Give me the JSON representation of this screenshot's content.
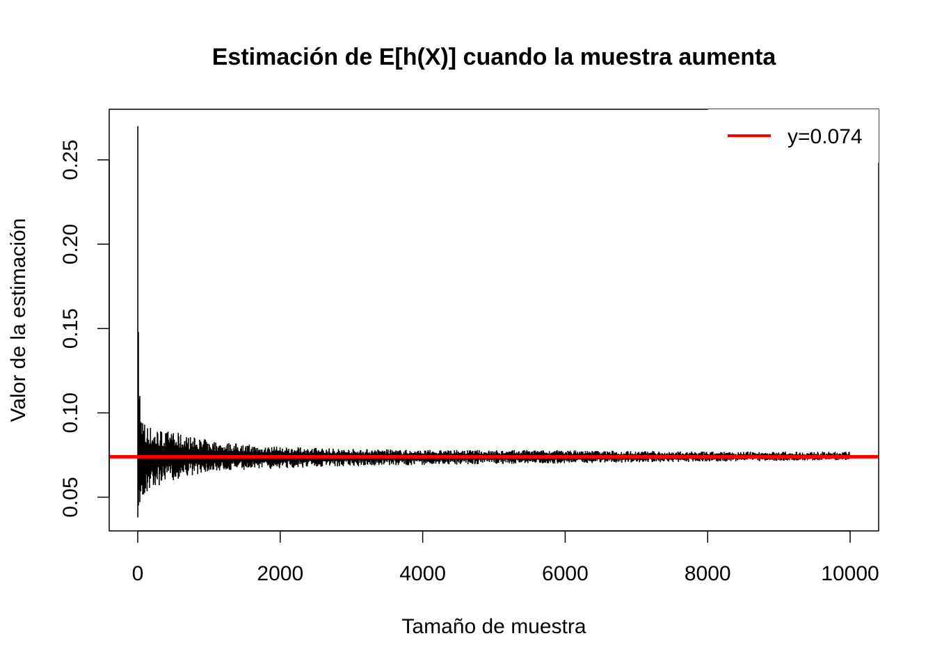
{
  "chart_data": {
    "type": "line",
    "title": "Estimación de E[h(X)] cuando la muestra aumenta",
    "xlabel": "Tamaño de muestra",
    "ylabel": "Valor de la estimación",
    "xlim": [
      -400,
      10400
    ],
    "ylim": [
      0.03,
      0.28
    ],
    "x_ticks": [
      0,
      2000,
      4000,
      6000,
      8000,
      10000
    ],
    "x_tick_labels": [
      "0",
      "2000",
      "4000",
      "6000",
      "8000",
      "10000"
    ],
    "y_ticks": [
      0.05,
      0.1,
      0.15,
      0.2,
      0.25
    ],
    "y_tick_labels": [
      "0.05",
      "0.10",
      "0.15",
      "0.20",
      "0.25"
    ],
    "grid": false,
    "series": [
      {
        "color": "#000000",
        "x_range": [
          1,
          10000
        ],
        "envelope": [
          {
            "x": 1,
            "y_min": 0.038,
            "y_max": 0.27
          },
          {
            "x": 10,
            "y_min": 0.045,
            "y_max": 0.148
          },
          {
            "x": 30,
            "y_min": 0.047,
            "y_max": 0.11
          },
          {
            "x": 100,
            "y_min": 0.05,
            "y_max": 0.095
          },
          {
            "x": 300,
            "y_min": 0.057,
            "y_max": 0.091
          },
          {
            "x": 600,
            "y_min": 0.061,
            "y_max": 0.088
          },
          {
            "x": 1000,
            "y_min": 0.065,
            "y_max": 0.084
          },
          {
            "x": 2000,
            "y_min": 0.067,
            "y_max": 0.08
          },
          {
            "x": 4000,
            "y_min": 0.069,
            "y_max": 0.078
          },
          {
            "x": 6000,
            "y_min": 0.07,
            "y_max": 0.078
          },
          {
            "x": 8000,
            "y_min": 0.071,
            "y_max": 0.077
          },
          {
            "x": 10000,
            "y_min": 0.072,
            "y_max": 0.077
          }
        ],
        "converges_to": 0.074
      },
      {
        "name": "y=0.074",
        "type": "hline",
        "y": 0.074,
        "color": "#ff0000"
      }
    ],
    "legend": {
      "position": "top-right",
      "entries": [
        {
          "label": "y=0.074",
          "color": "#ff0000"
        }
      ]
    }
  }
}
